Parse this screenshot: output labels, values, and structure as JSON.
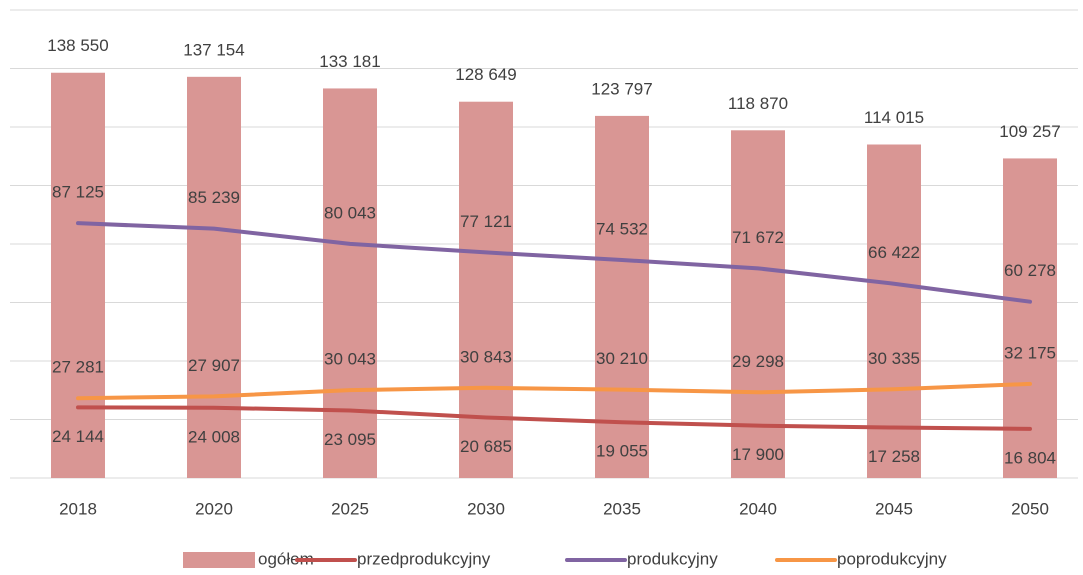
{
  "chart_data": {
    "type": "bar-line",
    "categories": [
      "2018",
      "2020",
      "2025",
      "2030",
      "2035",
      "2040",
      "2045",
      "2050"
    ],
    "ylim": [
      0,
      160000
    ],
    "yticks": [
      0,
      20000,
      40000,
      60000,
      80000,
      100000,
      120000,
      140000,
      160000
    ],
    "grid": true,
    "legend": "bottom",
    "series": [
      {
        "name": "ogółem",
        "type": "bar",
        "color": "#d99694",
        "values": [
          138550,
          137154,
          133181,
          128649,
          123797,
          118870,
          114015,
          109257
        ],
        "value_labels": [
          "138 550",
          "137 154",
          "133 181",
          "128 649",
          "123 797",
          "118 870",
          "114 015",
          "109 257"
        ]
      },
      {
        "name": "przedprodukcyjny",
        "type": "line",
        "color": "#c0504d",
        "values": [
          24144,
          24008,
          23095,
          20685,
          19055,
          17900,
          17258,
          16804
        ],
        "value_labels": [
          "24 144",
          "24 008",
          "23 095",
          "20 685",
          "19 055",
          "17 900",
          "17 258",
          "16 804"
        ]
      },
      {
        "name": "produkcyjny",
        "type": "line",
        "color": "#8064a2",
        "values": [
          87125,
          85239,
          80043,
          77121,
          74532,
          71672,
          66422,
          60278
        ],
        "value_labels": [
          "87 125",
          "85 239",
          "80 043",
          "77 121",
          "74 532",
          "71 672",
          "66 422",
          "60 278"
        ]
      },
      {
        "name": "poprodukcyjny",
        "type": "line",
        "color": "#f79646",
        "values": [
          27281,
          27907,
          30043,
          30843,
          30210,
          29298,
          30335,
          32175
        ],
        "value_labels": [
          "27 281",
          "27 907",
          "30 043",
          "30 843",
          "30 210",
          "29 298",
          "30 335",
          "32 175"
        ]
      }
    ]
  }
}
